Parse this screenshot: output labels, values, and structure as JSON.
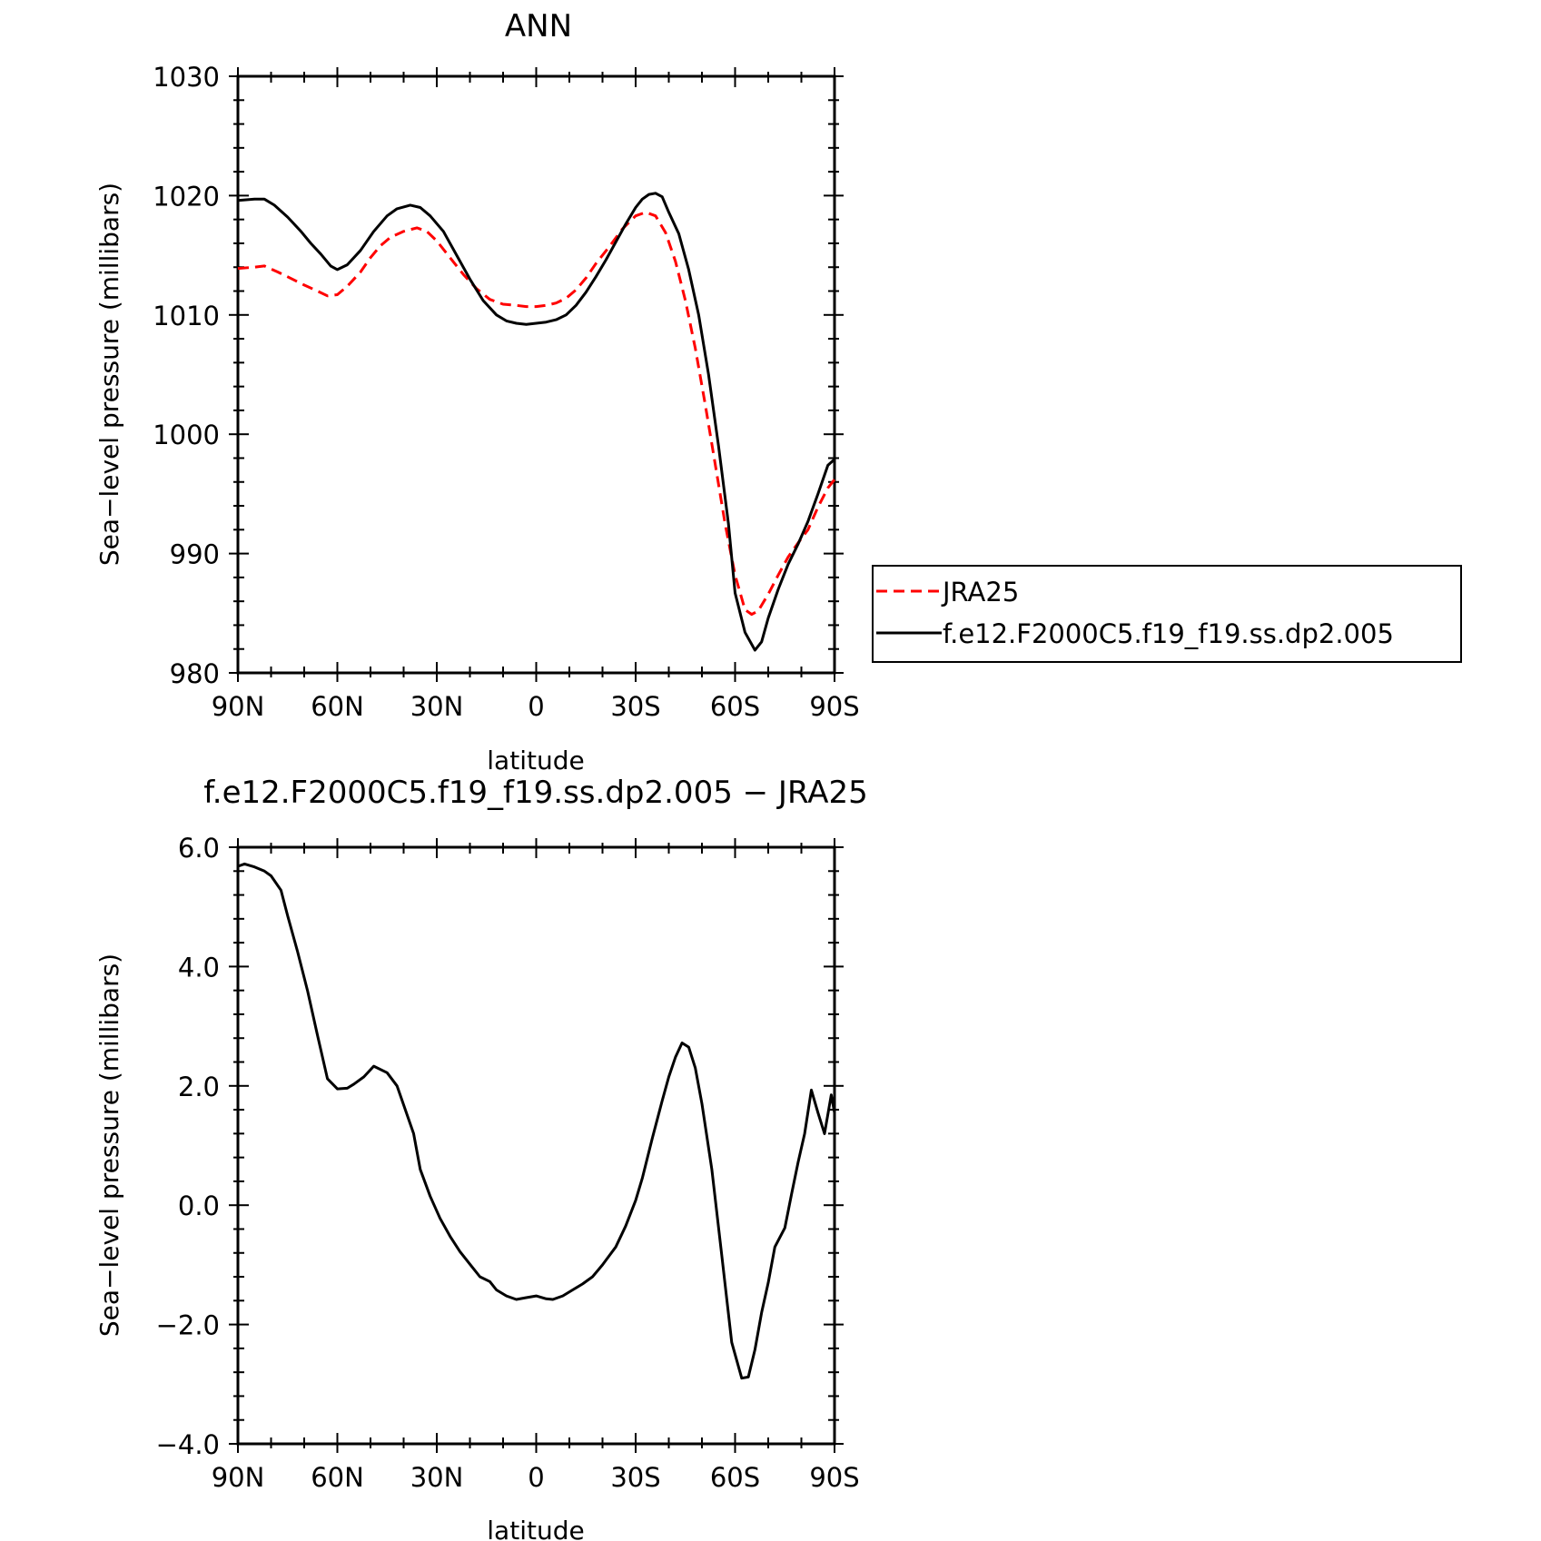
{
  "chart_data": [
    {
      "type": "line",
      "title": "ANN",
      "xlabel": "latitude",
      "ylabel": "Sea−level pressure (millibars)",
      "xlim": [
        90,
        -90
      ],
      "ylim": [
        980,
        1030
      ],
      "x_ticks": [
        90,
        60,
        30,
        0,
        -30,
        -60,
        -90
      ],
      "x_tick_labels": [
        "90N",
        "60N",
        "30N",
        "0",
        "30S",
        "60S",
        "90S"
      ],
      "y_ticks": [
        980,
        990,
        1000,
        1010,
        1020,
        1030
      ],
      "y_tick_labels": [
        "980",
        "990",
        "1000",
        "1010",
        "1020",
        "1030"
      ],
      "grid": false,
      "legend": "right",
      "series": [
        {
          "name": "JRA25",
          "color": "#ff0000",
          "dash": "dashed",
          "x": [
            90,
            85,
            82,
            78,
            75,
            70,
            66,
            63,
            60,
            57,
            53,
            50,
            47,
            44,
            40,
            36,
            33,
            30,
            26,
            22,
            18,
            14,
            10,
            6,
            3,
            0,
            -3,
            -6,
            -9,
            -12,
            -15,
            -18,
            -22,
            -26,
            -30,
            -33,
            -36,
            -39,
            -42,
            -45,
            -48,
            -51,
            -54,
            -57,
            -60,
            -63,
            -65,
            -67,
            -70,
            -73,
            -76,
            -79,
            -82,
            -85,
            -88,
            -90
          ],
          "values": [
            1013.9,
            1014.0,
            1014.1,
            1013.6,
            1013.2,
            1012.5,
            1012.0,
            1011.6,
            1011.7,
            1012.4,
            1013.6,
            1014.8,
            1015.8,
            1016.5,
            1017.0,
            1017.3,
            1017.0,
            1016.2,
            1014.8,
            1013.4,
            1012.2,
            1011.3,
            1010.9,
            1010.8,
            1010.7,
            1010.7,
            1010.8,
            1011.0,
            1011.4,
            1012.1,
            1013.1,
            1014.3,
            1015.7,
            1017.2,
            1018.3,
            1018.6,
            1018.3,
            1016.9,
            1014.5,
            1011.2,
            1007.2,
            1002.5,
            997.5,
            992.5,
            988.2,
            985.3,
            984.9,
            985.2,
            986.6,
            988.2,
            989.7,
            990.9,
            992.0,
            993.9,
            995.5,
            996.2
          ]
        },
        {
          "name": "f.e12.F2000C5.f19_f19.ss.dp2.005",
          "color": "#000000",
          "dash": "solid",
          "x": [
            90,
            85,
            82,
            79,
            75,
            71,
            68,
            65,
            62,
            60,
            57,
            53,
            49,
            45,
            42,
            38,
            35,
            32,
            28,
            24,
            20,
            16,
            12,
            9,
            6,
            3,
            0,
            -3,
            -6,
            -9,
            -12,
            -15,
            -18,
            -21,
            -24,
            -27,
            -30,
            -32,
            -34,
            -36,
            -38,
            -40,
            -43,
            -46,
            -49,
            -52,
            -55,
            -58,
            -60,
            -63,
            -66,
            -68,
            -70,
            -73,
            -76,
            -79,
            -82,
            -85,
            -88,
            -90
          ],
          "values": [
            1019.6,
            1019.7,
            1019.7,
            1019.2,
            1018.2,
            1017.0,
            1016.0,
            1015.1,
            1014.1,
            1013.8,
            1014.2,
            1015.4,
            1017.0,
            1018.3,
            1018.9,
            1019.2,
            1019.0,
            1018.3,
            1017.0,
            1015.0,
            1013.0,
            1011.2,
            1010.0,
            1009.5,
            1009.3,
            1009.2,
            1009.3,
            1009.4,
            1009.6,
            1010.0,
            1010.8,
            1011.9,
            1013.2,
            1014.6,
            1016.1,
            1017.6,
            1019.0,
            1019.7,
            1020.1,
            1020.2,
            1019.9,
            1018.6,
            1016.8,
            1013.8,
            1010.0,
            1005.0,
            999.0,
            992.5,
            986.7,
            983.4,
            981.9,
            982.6,
            984.6,
            987.0,
            989.1,
            990.8,
            992.7,
            995.0,
            997.4,
            997.9
          ]
        }
      ]
    },
    {
      "type": "line",
      "title": "f.e12.F2000C5.f19_f19.ss.dp2.005 − JRA25",
      "xlabel": "latitude",
      "ylabel": "Sea−level pressure (millibars)",
      "xlim": [
        90,
        -90
      ],
      "ylim": [
        -4.0,
        6.0
      ],
      "x_ticks": [
        90,
        60,
        30,
        0,
        -30,
        -60,
        -90
      ],
      "x_tick_labels": [
        "90N",
        "60N",
        "30N",
        "0",
        "30S",
        "60S",
        "90S"
      ],
      "y_ticks": [
        -4.0,
        -2.0,
        0.0,
        2.0,
        4.0,
        6.0
      ],
      "y_tick_labels": [
        "−4.0",
        "−2.0",
        "0.0",
        "2.0",
        "4.0",
        "6.0"
      ],
      "grid": false,
      "series": [
        {
          "name": "",
          "color": "#000000",
          "dash": "solid",
          "x": [
            90,
            88,
            85,
            82,
            80,
            77,
            75,
            72,
            69,
            66,
            63,
            60,
            57,
            55,
            52,
            49,
            45,
            42,
            37,
            35,
            32,
            29,
            26,
            23,
            20,
            17,
            14,
            12,
            9,
            6,
            3,
            0,
            -3,
            -5,
            -8,
            -11,
            -14,
            -17,
            -20,
            -22,
            -24,
            -27,
            -30,
            -32,
            -35,
            -38,
            -40,
            -42,
            -44,
            -46,
            -48,
            -50,
            -53,
            -56,
            -59,
            -62,
            -64,
            -66,
            -68,
            -70,
            -72,
            -75,
            -77,
            -79,
            -81,
            -83,
            -85,
            -87,
            -89,
            -90
          ],
          "values": [
            5.68,
            5.72,
            5.67,
            5.6,
            5.52,
            5.28,
            4.85,
            4.25,
            3.6,
            2.85,
            2.12,
            1.95,
            1.96,
            2.03,
            2.15,
            2.33,
            2.22,
            2.0,
            1.2,
            0.6,
            0.15,
            -0.22,
            -0.52,
            -0.78,
            -0.99,
            -1.2,
            -1.28,
            -1.42,
            -1.52,
            -1.58,
            -1.55,
            -1.52,
            -1.57,
            -1.58,
            -1.52,
            -1.42,
            -1.32,
            -1.2,
            -1.0,
            -0.85,
            -0.7,
            -0.35,
            0.08,
            0.45,
            1.12,
            1.75,
            2.15,
            2.48,
            2.72,
            2.65,
            2.3,
            1.7,
            0.6,
            -0.85,
            -2.3,
            -2.9,
            -2.88,
            -2.42,
            -1.8,
            -1.3,
            -0.7,
            -0.38,
            0.18,
            0.72,
            1.2,
            1.93,
            1.55,
            1.2,
            1.85,
            1.55
          ]
        }
      ]
    }
  ]
}
